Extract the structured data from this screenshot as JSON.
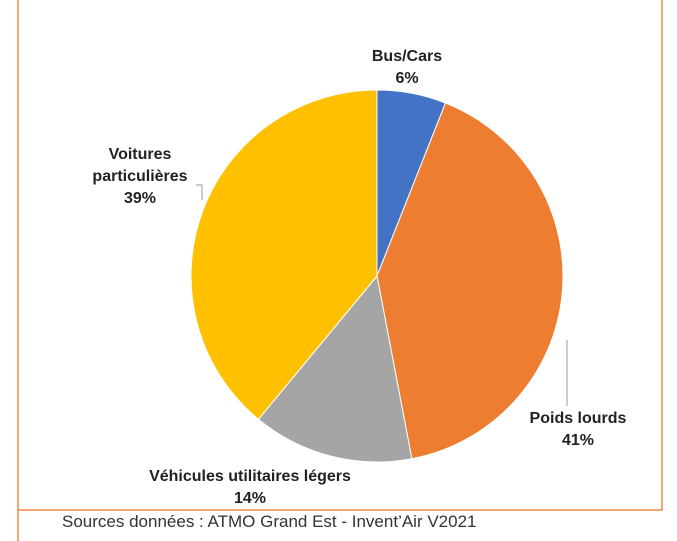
{
  "chart_data": {
    "type": "pie",
    "categories": [
      "Bus/Cars",
      "Poids lourds",
      "Véhicules utilitaires légers",
      "Voitures\nparticulières"
    ],
    "values": [
      6,
      41,
      14,
      39
    ],
    "value_labels": [
      "6%",
      "41%",
      "14%",
      "39%"
    ],
    "colors": [
      "#4472c4",
      "#ed7d31",
      "#a5a5a5",
      "#ffc000"
    ],
    "source": "Sources données : ATMO Grand Est - Invent’Air V2021"
  }
}
